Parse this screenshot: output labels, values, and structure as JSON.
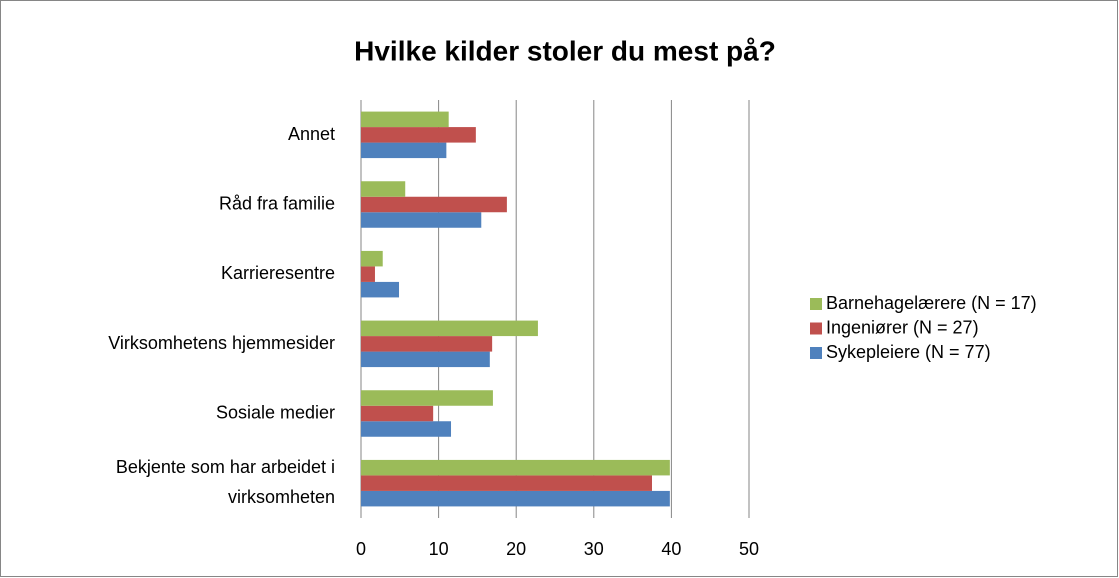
{
  "chart_data": {
    "type": "bar",
    "orientation": "horizontal",
    "title": "Hvilke kilder stoler du mest på?",
    "categories": [
      "Bekjente som har arbeidet i virksomheten",
      "Sosiale medier",
      "Virksomhetens hjemmesider",
      "Karrieresentre",
      "Råd fra familie",
      "Annet"
    ],
    "series": [
      {
        "name": "Sykepleiere (N = 77)",
        "color": "#4f81bd",
        "values": [
          39.8,
          11.6,
          16.6,
          4.9,
          15.5,
          11.0
        ]
      },
      {
        "name": "Ingeniører (N = 27)",
        "color": "#c0504d",
        "values": [
          37.5,
          9.3,
          16.9,
          1.8,
          18.8,
          14.8
        ]
      },
      {
        "name": "Barnehagelærere (N = 17)",
        "color": "#9bbb59",
        "values": [
          39.8,
          17.0,
          22.8,
          2.8,
          5.7,
          11.3
        ]
      }
    ],
    "xlim": [
      0,
      50
    ],
    "xticks": [
      0,
      10,
      20,
      30,
      40,
      50
    ],
    "grid": true,
    "legend": "right"
  }
}
